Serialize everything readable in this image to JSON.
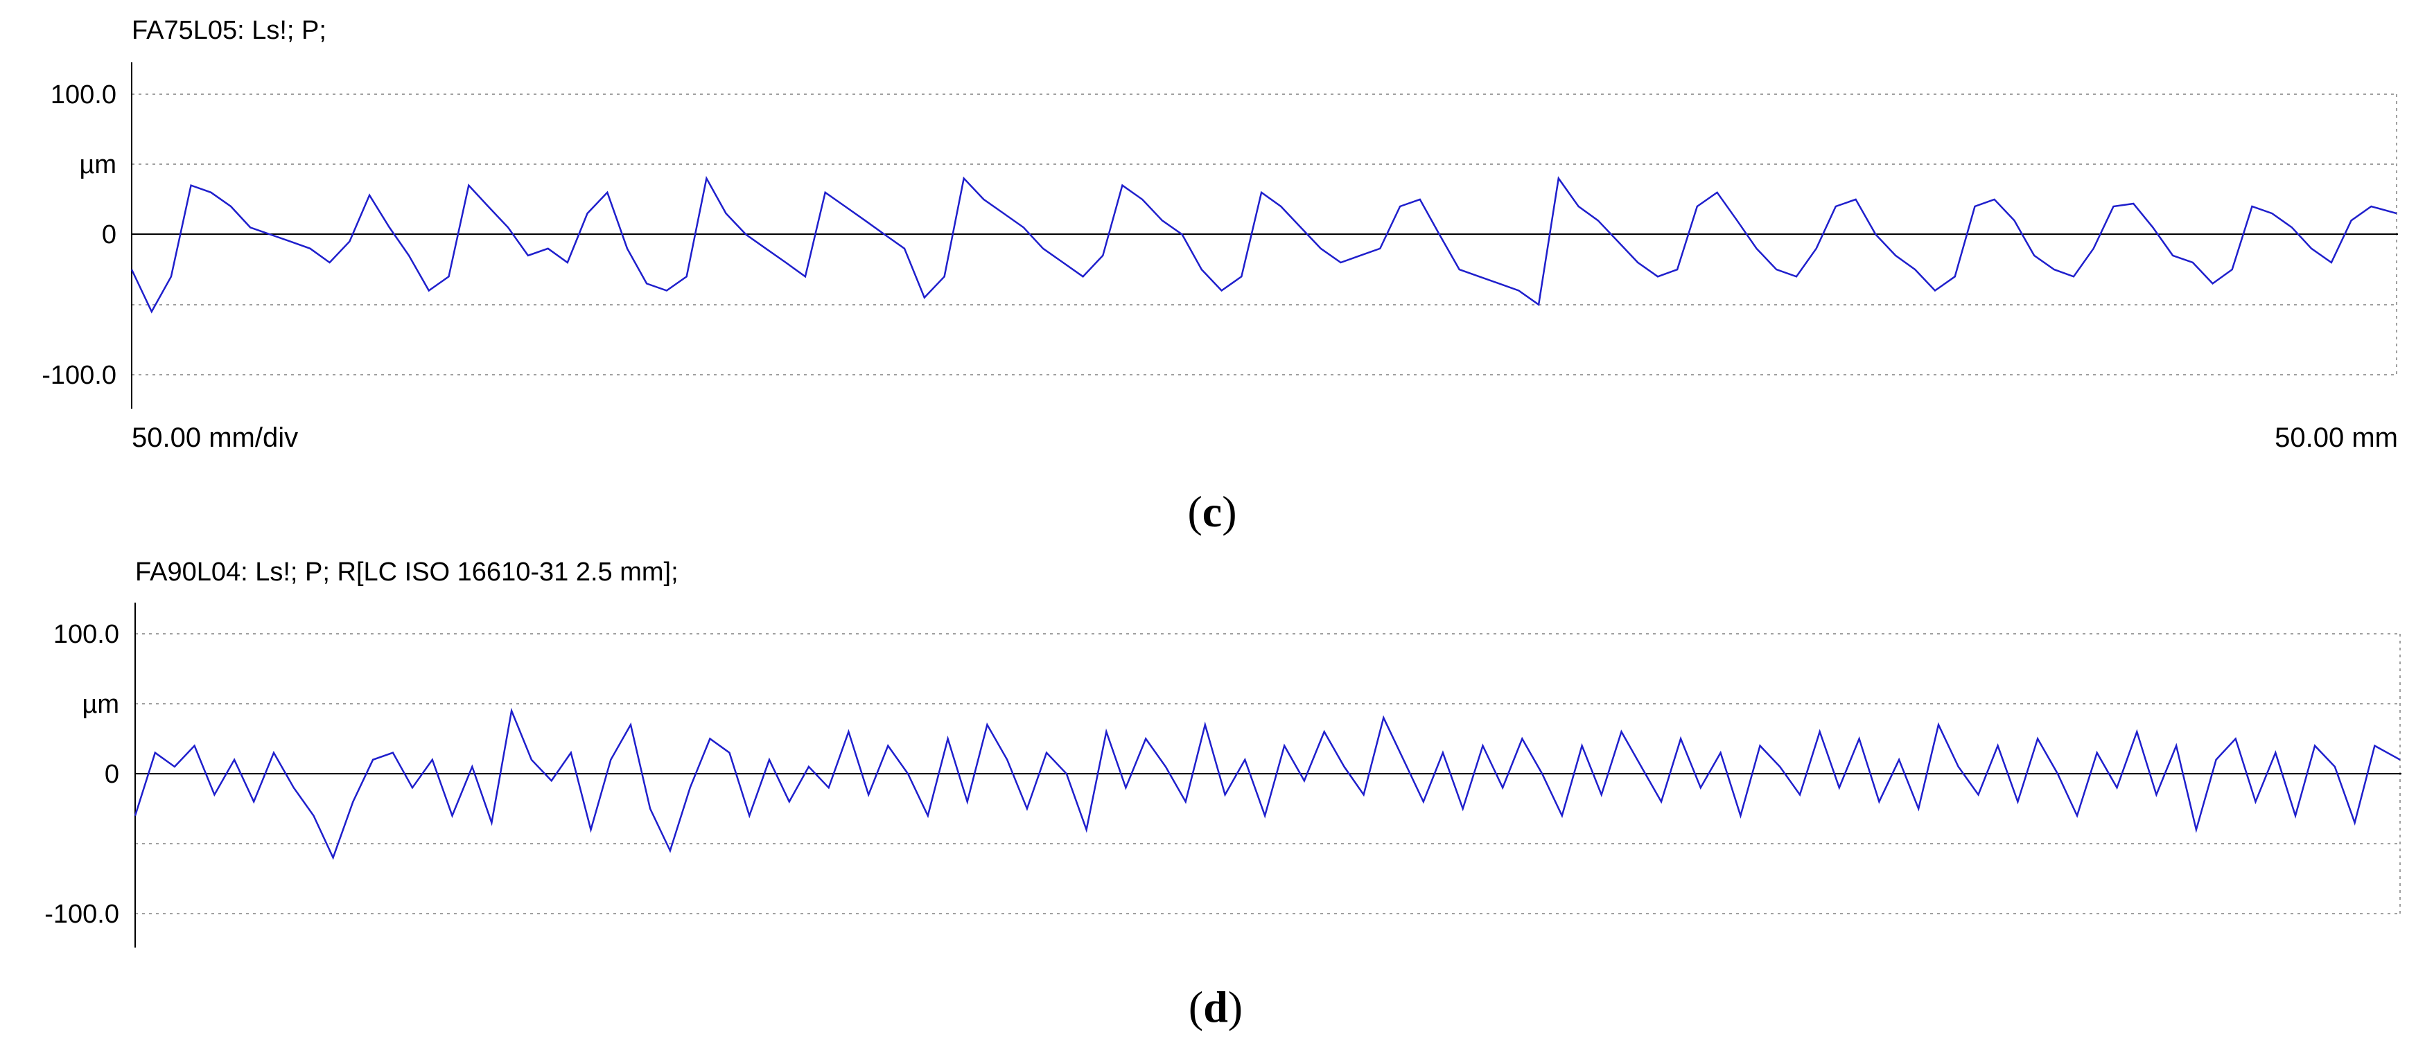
{
  "chart_data": [
    {
      "id": "c",
      "type": "line",
      "title": "FA75L05: Ls!; P;",
      "caption_letter": "c",
      "y_tick_labels": [
        "100.0",
        "µm",
        "0",
        "-100.0"
      ],
      "y_gridlines": [
        100,
        50,
        0,
        -50,
        -100
      ],
      "ylim": [
        -100,
        100
      ],
      "ylabel": "µm",
      "x_label_left": "50.00 mm/div",
      "x_label_right": "50.00 mm",
      "xlim": [
        0,
        50
      ],
      "grid": true,
      "series": [
        {
          "color": "#1f1fcc",
          "x": [
            0,
            0.44,
            0.87,
            1.31,
            1.75,
            2.19,
            2.62,
            3.06,
            3.5,
            3.94,
            4.37,
            4.81,
            5.25,
            5.69,
            6.12,
            6.56,
            7.0,
            7.44,
            7.87,
            8.31,
            8.75,
            9.19,
            9.62,
            10.06,
            10.5,
            10.94,
            11.37,
            11.81,
            12.25,
            12.69,
            13.12,
            13.56,
            14.0,
            14.44,
            14.87,
            15.31,
            15.75,
            16.19,
            16.62,
            17.06,
            17.5,
            17.94,
            18.37,
            18.81,
            19.25,
            19.69,
            20.12,
            20.56,
            21.0,
            21.44,
            21.87,
            22.31,
            22.75,
            23.19,
            23.62,
            24.06,
            24.5,
            24.94,
            25.37,
            25.81,
            26.25,
            26.69,
            27.12,
            27.56,
            28.0,
            28.44,
            28.87,
            29.31,
            29.75,
            30.19,
            30.62,
            31.06,
            31.5,
            31.94,
            32.37,
            32.81,
            33.25,
            33.69,
            34.12,
            34.56,
            35.0,
            35.44,
            35.87,
            36.31,
            36.75,
            37.19,
            37.62,
            38.06,
            38.5,
            38.94,
            39.37,
            39.81,
            40.25,
            40.69,
            41.12,
            41.56,
            42.0,
            42.44,
            42.87,
            43.31,
            43.75,
            44.19,
            44.62,
            45.06,
            45.5,
            45.94,
            46.37,
            46.81,
            47.25,
            47.69,
            48.12,
            48.56,
            49.0,
            49.44,
            50.0
          ],
          "y": [
            -25,
            -55,
            -30,
            35,
            30,
            20,
            5,
            0,
            -5,
            -10,
            -20,
            -5,
            28,
            5,
            -15,
            -40,
            -30,
            35,
            20,
            5,
            -15,
            -10,
            -20,
            15,
            30,
            -10,
            -35,
            -40,
            -30,
            40,
            15,
            0,
            -10,
            -20,
            -30,
            30,
            20,
            10,
            0,
            -10,
            -45,
            -30,
            40,
            25,
            15,
            5,
            -10,
            -20,
            -30,
            -15,
            35,
            25,
            10,
            0,
            -25,
            -40,
            -30,
            30,
            20,
            5,
            -10,
            -20,
            -15,
            -10,
            20,
            25,
            0,
            -25,
            -30,
            -35,
            -40,
            -50,
            40,
            20,
            10,
            -5,
            -20,
            -30,
            -25,
            20,
            30,
            10,
            -10,
            -25,
            -30,
            -10,
            20,
            25,
            0,
            -15,
            -25,
            -40,
            -30,
            20,
            25,
            10,
            -15,
            -25,
            -30,
            -10,
            20,
            22,
            5,
            -15,
            -20,
            -35,
            -25,
            20,
            15,
            5,
            -10,
            -20,
            10,
            20,
            15
          ]
        }
      ]
    },
    {
      "id": "d",
      "type": "line",
      "title": "FA90L04: Ls!; P; R[LC ISO 16610-31 2.5 mm];",
      "caption_letter": "d",
      "y_tick_labels": [
        "100.0",
        "µm",
        "0",
        "-100.0"
      ],
      "y_gridlines": [
        100,
        50,
        0,
        -50,
        -100
      ],
      "ylim": [
        -100,
        100
      ],
      "ylabel": "µm",
      "xlim": [
        0,
        50
      ],
      "grid": true,
      "series": [
        {
          "color": "#1f1fcc",
          "x": [
            0,
            0.44,
            0.87,
            1.31,
            1.75,
            2.19,
            2.62,
            3.06,
            3.5,
            3.94,
            4.37,
            4.81,
            5.25,
            5.69,
            6.12,
            6.56,
            7.0,
            7.44,
            7.87,
            8.31,
            8.75,
            9.19,
            9.62,
            10.06,
            10.5,
            10.94,
            11.37,
            11.81,
            12.25,
            12.69,
            13.12,
            13.56,
            14.0,
            14.44,
            14.87,
            15.31,
            15.75,
            16.19,
            16.62,
            17.06,
            17.5,
            17.94,
            18.37,
            18.81,
            19.25,
            19.69,
            20.12,
            20.56,
            21.0,
            21.44,
            21.87,
            22.31,
            22.75,
            23.19,
            23.62,
            24.06,
            24.5,
            24.94,
            25.37,
            25.81,
            26.25,
            26.69,
            27.12,
            27.56,
            28.0,
            28.44,
            28.87,
            29.31,
            29.75,
            30.19,
            30.62,
            31.06,
            31.5,
            31.94,
            32.37,
            32.81,
            33.25,
            33.69,
            34.12,
            34.56,
            35.0,
            35.44,
            35.87,
            36.31,
            36.75,
            37.19,
            37.62,
            38.06,
            38.5,
            38.94,
            39.37,
            39.81,
            40.25,
            40.69,
            41.12,
            41.56,
            42.0,
            42.44,
            42.87,
            43.31,
            43.75,
            44.19,
            44.62,
            45.06,
            45.5,
            45.94,
            46.37,
            46.81,
            47.25,
            47.69,
            48.12,
            48.56,
            49.0,
            49.44,
            50.0
          ],
          "y": [
            -30,
            15,
            5,
            20,
            -15,
            10,
            -20,
            15,
            -10,
            -30,
            -60,
            -20,
            10,
            15,
            -10,
            10,
            -30,
            5,
            -35,
            45,
            10,
            -5,
            15,
            -40,
            10,
            35,
            -25,
            -55,
            -10,
            25,
            15,
            -30,
            10,
            -20,
            5,
            -10,
            30,
            -15,
            20,
            0,
            -30,
            25,
            -20,
            35,
            10,
            -25,
            15,
            0,
            -40,
            30,
            -10,
            25,
            5,
            -20,
            35,
            -15,
            10,
            -30,
            20,
            -5,
            30,
            5,
            -15,
            40,
            10,
            -20,
            15,
            -25,
            20,
            -10,
            25,
            0,
            -30,
            20,
            -15,
            30,
            5,
            -20,
            25,
            -10,
            15,
            -30,
            20,
            5,
            -15,
            30,
            -10,
            25,
            -20,
            10,
            -25,
            35,
            5,
            -15,
            20,
            -20,
            25,
            0,
            -30,
            15,
            -10,
            30,
            -15,
            20,
            -40,
            10,
            25,
            -20,
            15,
            -30,
            20,
            5,
            -35,
            20,
            10
          ]
        }
      ]
    }
  ]
}
